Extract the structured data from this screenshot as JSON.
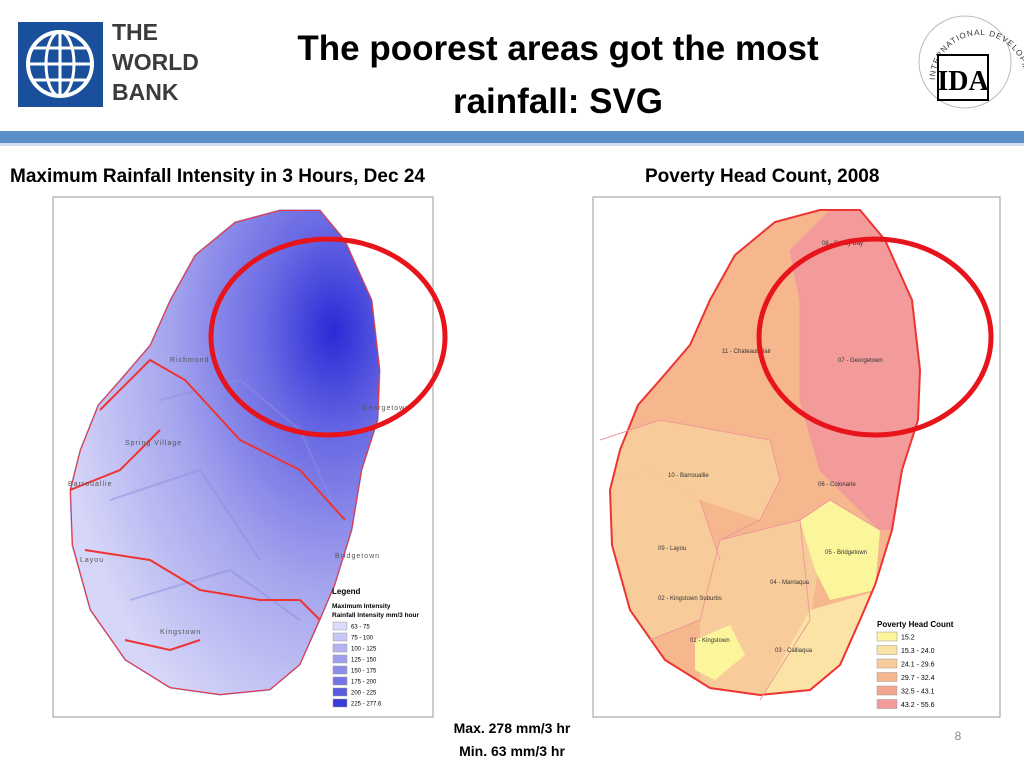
{
  "header": {
    "logo_left": [
      "THE",
      "WORLD",
      "BANK"
    ],
    "title": [
      "The poorest areas got the most",
      "rainfall: SVG"
    ],
    "logo_right": {
      "ring": "INTERNATIONAL DEVELOPMENT ASSOCIATION",
      "mark": "IDA"
    }
  },
  "left_map": {
    "caption": "Maximum Rainfall Intensity in 3 Hours, Dec 24",
    "places": [
      "Richmond",
      "Georgetown",
      "Spring Village",
      "Barrouallie",
      "Layou",
      "Bridgetown",
      "Kingstown"
    ],
    "legend": {
      "title": "Legend",
      "subtitle": [
        "Maximum Intensity",
        "Rainfall Intensity mm/3 hour"
      ],
      "items": [
        {
          "label": "63 - 75",
          "color": "#dcdcfa"
        },
        {
          "label": "75 - 100",
          "color": "#c8c8f6"
        },
        {
          "label": "100 - 125",
          "color": "#b4b4f2"
        },
        {
          "label": "125 - 150",
          "color": "#a0a0ee"
        },
        {
          "label": "150 - 175",
          "color": "#8c8cea"
        },
        {
          "label": "175 - 200",
          "color": "#7474e6"
        },
        {
          "label": "200 - 225",
          "color": "#5a5ae0"
        },
        {
          "label": "225 - 277.6",
          "color": "#3a3ad8"
        }
      ]
    }
  },
  "right_map": {
    "caption": "Poverty Head Count, 2008",
    "regions": [
      "08 - Sandy Bay",
      "11 - Chateaubelair",
      "07 - Georgetown",
      "10 - Barrouallie",
      "06 - Colonarie",
      "09 - Layou",
      "05 - Bridgetown",
      "04 - Marriaqua",
      "02 - Kingstown Suburbs",
      "01 - Kingstown",
      "03 - Calliaqua"
    ],
    "legend": {
      "title": "Poverty Head Count",
      "items": [
        {
          "label": "15.2",
          "color": "#fbf59b"
        },
        {
          "label": "15.3 - 24.0",
          "color": "#fbe3a6"
        },
        {
          "label": "24.1 - 29.6",
          "color": "#f8cc9a"
        },
        {
          "label": "29.7 - 32.4",
          "color": "#f6b68e"
        },
        {
          "label": "32.5 - 43.1",
          "color": "#f4a58e"
        },
        {
          "label": "43.2 - 55.6",
          "color": "#f39a9a"
        }
      ]
    }
  },
  "footer": {
    "notes": [
      "Max. 278 mm/3 hr",
      "Min. 63 mm/3 hr"
    ],
    "page": "8"
  }
}
